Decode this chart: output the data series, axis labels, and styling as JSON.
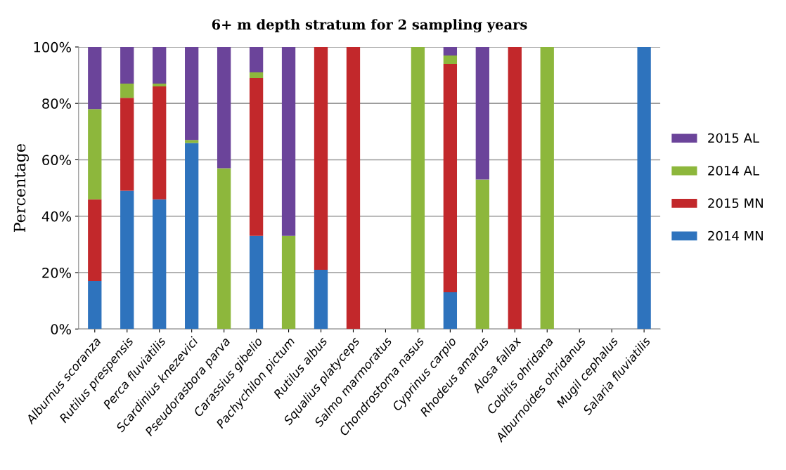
{
  "chart_data": {
    "type": "bar",
    "stacked": true,
    "title": "6+ m depth stratum for 2 sampling years",
    "ylabel": "Percentage",
    "categories": [
      "Alburnus scoranza",
      "Rutilus prespensis",
      "Perca fluviatilis",
      "Scardinius knezevici",
      "Pseudorasbora parva",
      "Carassius gibelio",
      "Pachychilon pictum",
      "Rutilus albus",
      "Squalius platyceps",
      "Salmo marmoratus",
      "Chondrostoma nasus",
      "Cyprinus carpio",
      "Rhodeus amarus",
      "Alosa fallax",
      "Cobitis ohridana",
      "Alburnoides ohridanus",
      "Mugil cephalus",
      "Salaria fluviatilis"
    ],
    "series": [
      {
        "name": "2014 MN",
        "color": "#2e73bd",
        "values": [
          17,
          49,
          46,
          66,
          0,
          33,
          0,
          21,
          0,
          0,
          0,
          13,
          0,
          0,
          0,
          0,
          0,
          100
        ]
      },
      {
        "name": "2015 MN",
        "color": "#c2282b",
        "values": [
          29,
          33,
          40,
          0,
          0,
          56,
          0,
          79,
          100,
          0,
          0,
          81,
          0,
          100,
          0,
          0,
          0,
          0
        ]
      },
      {
        "name": "2014 AL",
        "color": "#8db73c",
        "values": [
          32,
          5,
          1,
          1,
          57,
          2,
          33,
          0,
          0,
          0,
          100,
          3,
          53,
          0,
          100,
          0,
          0,
          0
        ]
      },
      {
        "name": "2015 AL",
        "color": "#6b449a",
        "values": [
          22,
          13,
          13,
          33,
          43,
          9,
          67,
          0,
          0,
          0,
          0,
          3,
          47,
          0,
          0,
          0,
          0,
          0
        ]
      }
    ],
    "ylim": [
      0,
      100
    ],
    "yticks": [
      {
        "value": 0,
        "label": "0%"
      },
      {
        "value": 20,
        "label": "20%"
      },
      {
        "value": 40,
        "label": "40%"
      },
      {
        "value": 60,
        "label": "60%"
      },
      {
        "value": 80,
        "label": "80%"
      },
      {
        "value": 100,
        "label": "100%"
      }
    ],
    "grid": "y",
    "legend": "right"
  }
}
